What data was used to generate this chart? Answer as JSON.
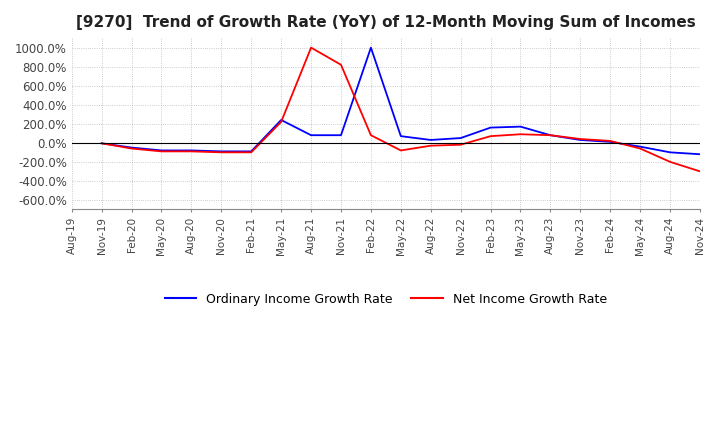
{
  "title": "[9270]  Trend of Growth Rate (YoY) of 12-Month Moving Sum of Incomes",
  "title_fontsize": 11,
  "ylim": [
    -700,
    1100
  ],
  "yticks": [
    -600,
    -400,
    -200,
    0,
    200,
    400,
    600,
    800,
    1000
  ],
  "yticklabels": [
    "-600.0%",
    "-400.0%",
    "-200.0%",
    "0.0%",
    "200.0%",
    "400.0%",
    "600.0%",
    "800.0%",
    "1000.0%"
  ],
  "background_color": "#ffffff",
  "grid_color": "#bbbbbb",
  "ordinary_color": "#0000ff",
  "net_color": "#ff0000",
  "legend_labels": [
    "Ordinary Income Growth Rate",
    "Net Income Growth Rate"
  ],
  "x_labels": [
    "Aug-19",
    "Nov-19",
    "Feb-20",
    "May-20",
    "Aug-20",
    "Nov-20",
    "Feb-21",
    "May-21",
    "Aug-21",
    "Nov-21",
    "Feb-22",
    "May-22",
    "Aug-22",
    "Nov-22",
    "Feb-23",
    "May-23",
    "Aug-23",
    "Nov-23",
    "Feb-24",
    "May-24",
    "Aug-24",
    "Nov-24"
  ],
  "ordinary_data": [
    null,
    -5,
    -50,
    -80,
    -80,
    -90,
    -90,
    240,
    80,
    80,
    1000,
    70,
    30,
    50,
    160,
    170,
    80,
    30,
    10,
    -40,
    -100,
    -120
  ],
  "net_data": [
    null,
    -5,
    -60,
    -90,
    -90,
    -100,
    -100,
    220,
    1000,
    820,
    80,
    -80,
    -30,
    -20,
    70,
    90,
    80,
    40,
    20,
    -60,
    -200,
    -300
  ]
}
